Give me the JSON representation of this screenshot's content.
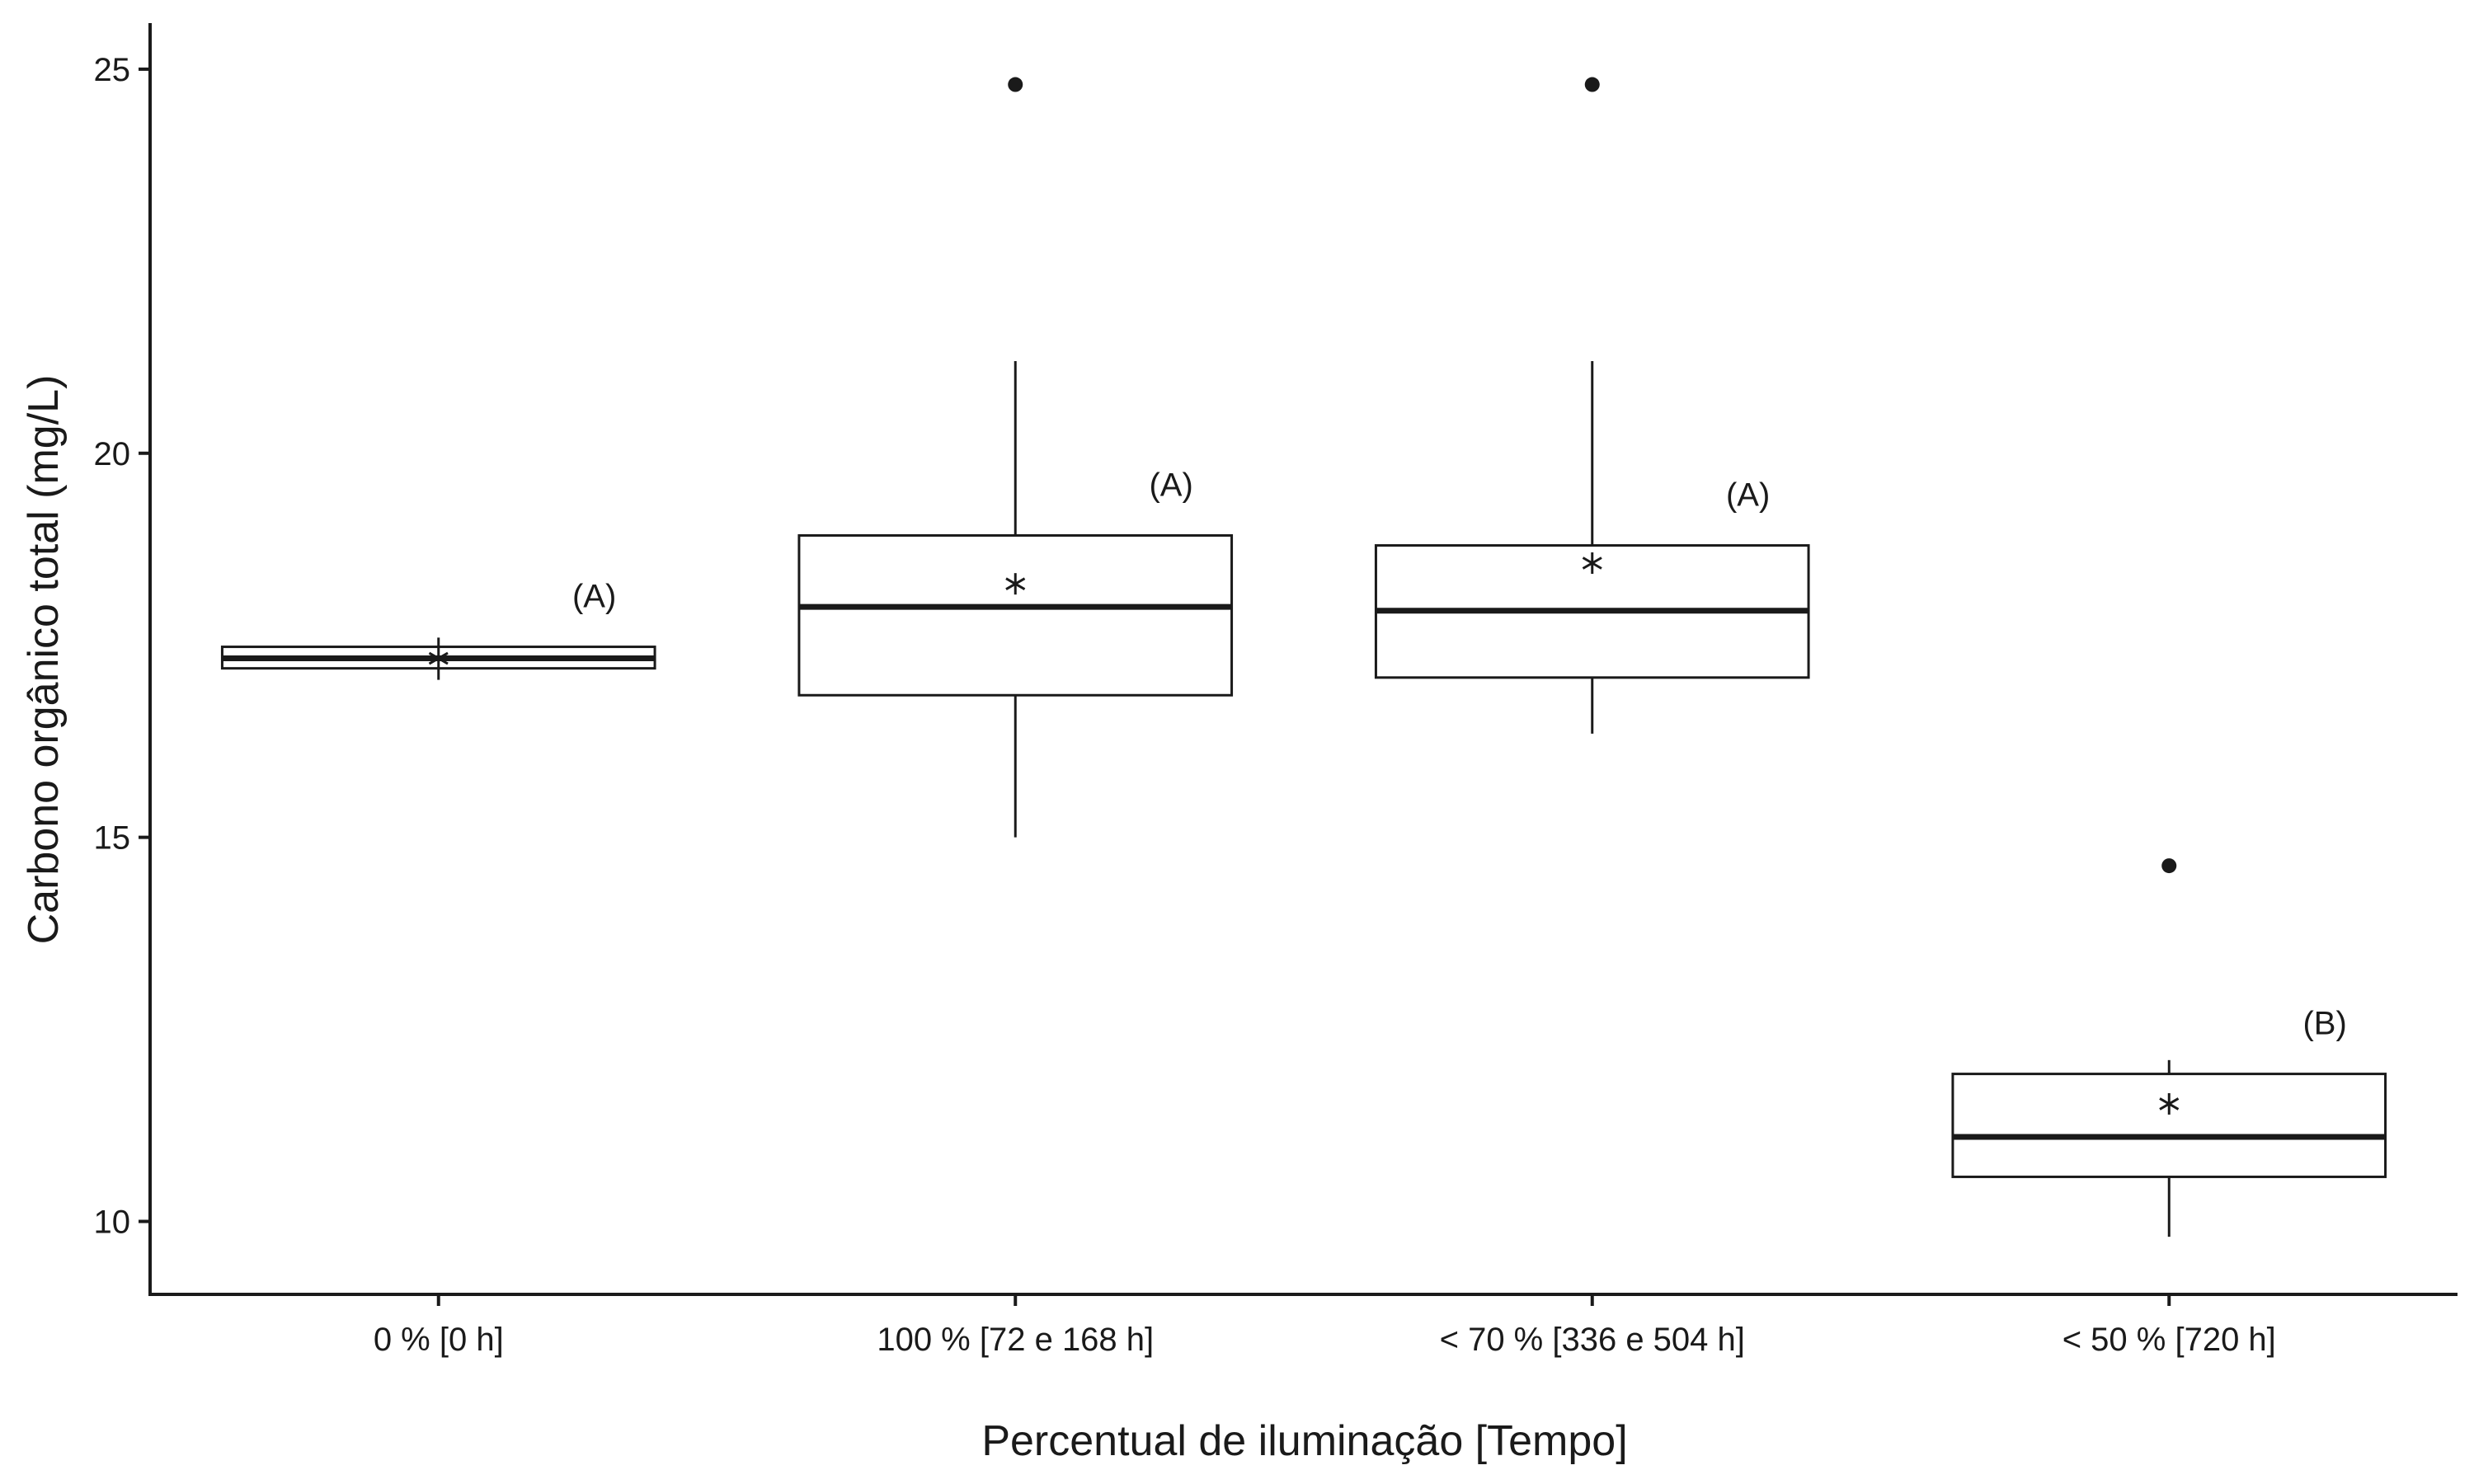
{
  "chart_data": {
    "type": "boxplot",
    "xlabel": "Percentual de iluminação [Tempo]",
    "ylabel": "Carbono orgânico total (mg/L)",
    "ylim": [
      9.05,
      25.6
    ],
    "yticks": [
      10,
      15,
      20,
      25
    ],
    "grid": false,
    "categories": [
      "0 % [0 h]",
      "100 % [72 e 168 h]",
      "< 70 % [336 e 504 h]",
      "< 50 % [720 h]"
    ],
    "boxes": [
      {
        "category": "0 % [0 h]",
        "whisker_low": 17.05,
        "q1": 17.2,
        "median": 17.33,
        "q3": 17.48,
        "whisker_high": 17.6,
        "mean": 17.33,
        "outliers": [],
        "group": "(A)"
      },
      {
        "category": "100 % [72 e 168 h]",
        "whisker_low": 15.0,
        "q1": 16.85,
        "median": 18.0,
        "q3": 18.93,
        "whisker_high": 21.2,
        "mean": 18.3,
        "outliers": [
          24.8
        ],
        "group": "(A)"
      },
      {
        "category": "< 70 % [336 e 504 h]",
        "whisker_low": 16.35,
        "q1": 17.08,
        "median": 17.95,
        "q3": 18.8,
        "whisker_high": 21.2,
        "mean": 18.57,
        "outliers": [
          24.8
        ],
        "group": "(A)"
      },
      {
        "category": "< 50 % [720 h]",
        "whisker_low": 9.8,
        "q1": 10.58,
        "median": 11.1,
        "q3": 11.92,
        "whisker_high": 12.1,
        "mean": 11.53,
        "outliers": [
          14.63
        ],
        "group": "(B)"
      }
    ],
    "colors": {
      "line": "#1a1a1a",
      "box_fill": "#ffffff"
    }
  }
}
